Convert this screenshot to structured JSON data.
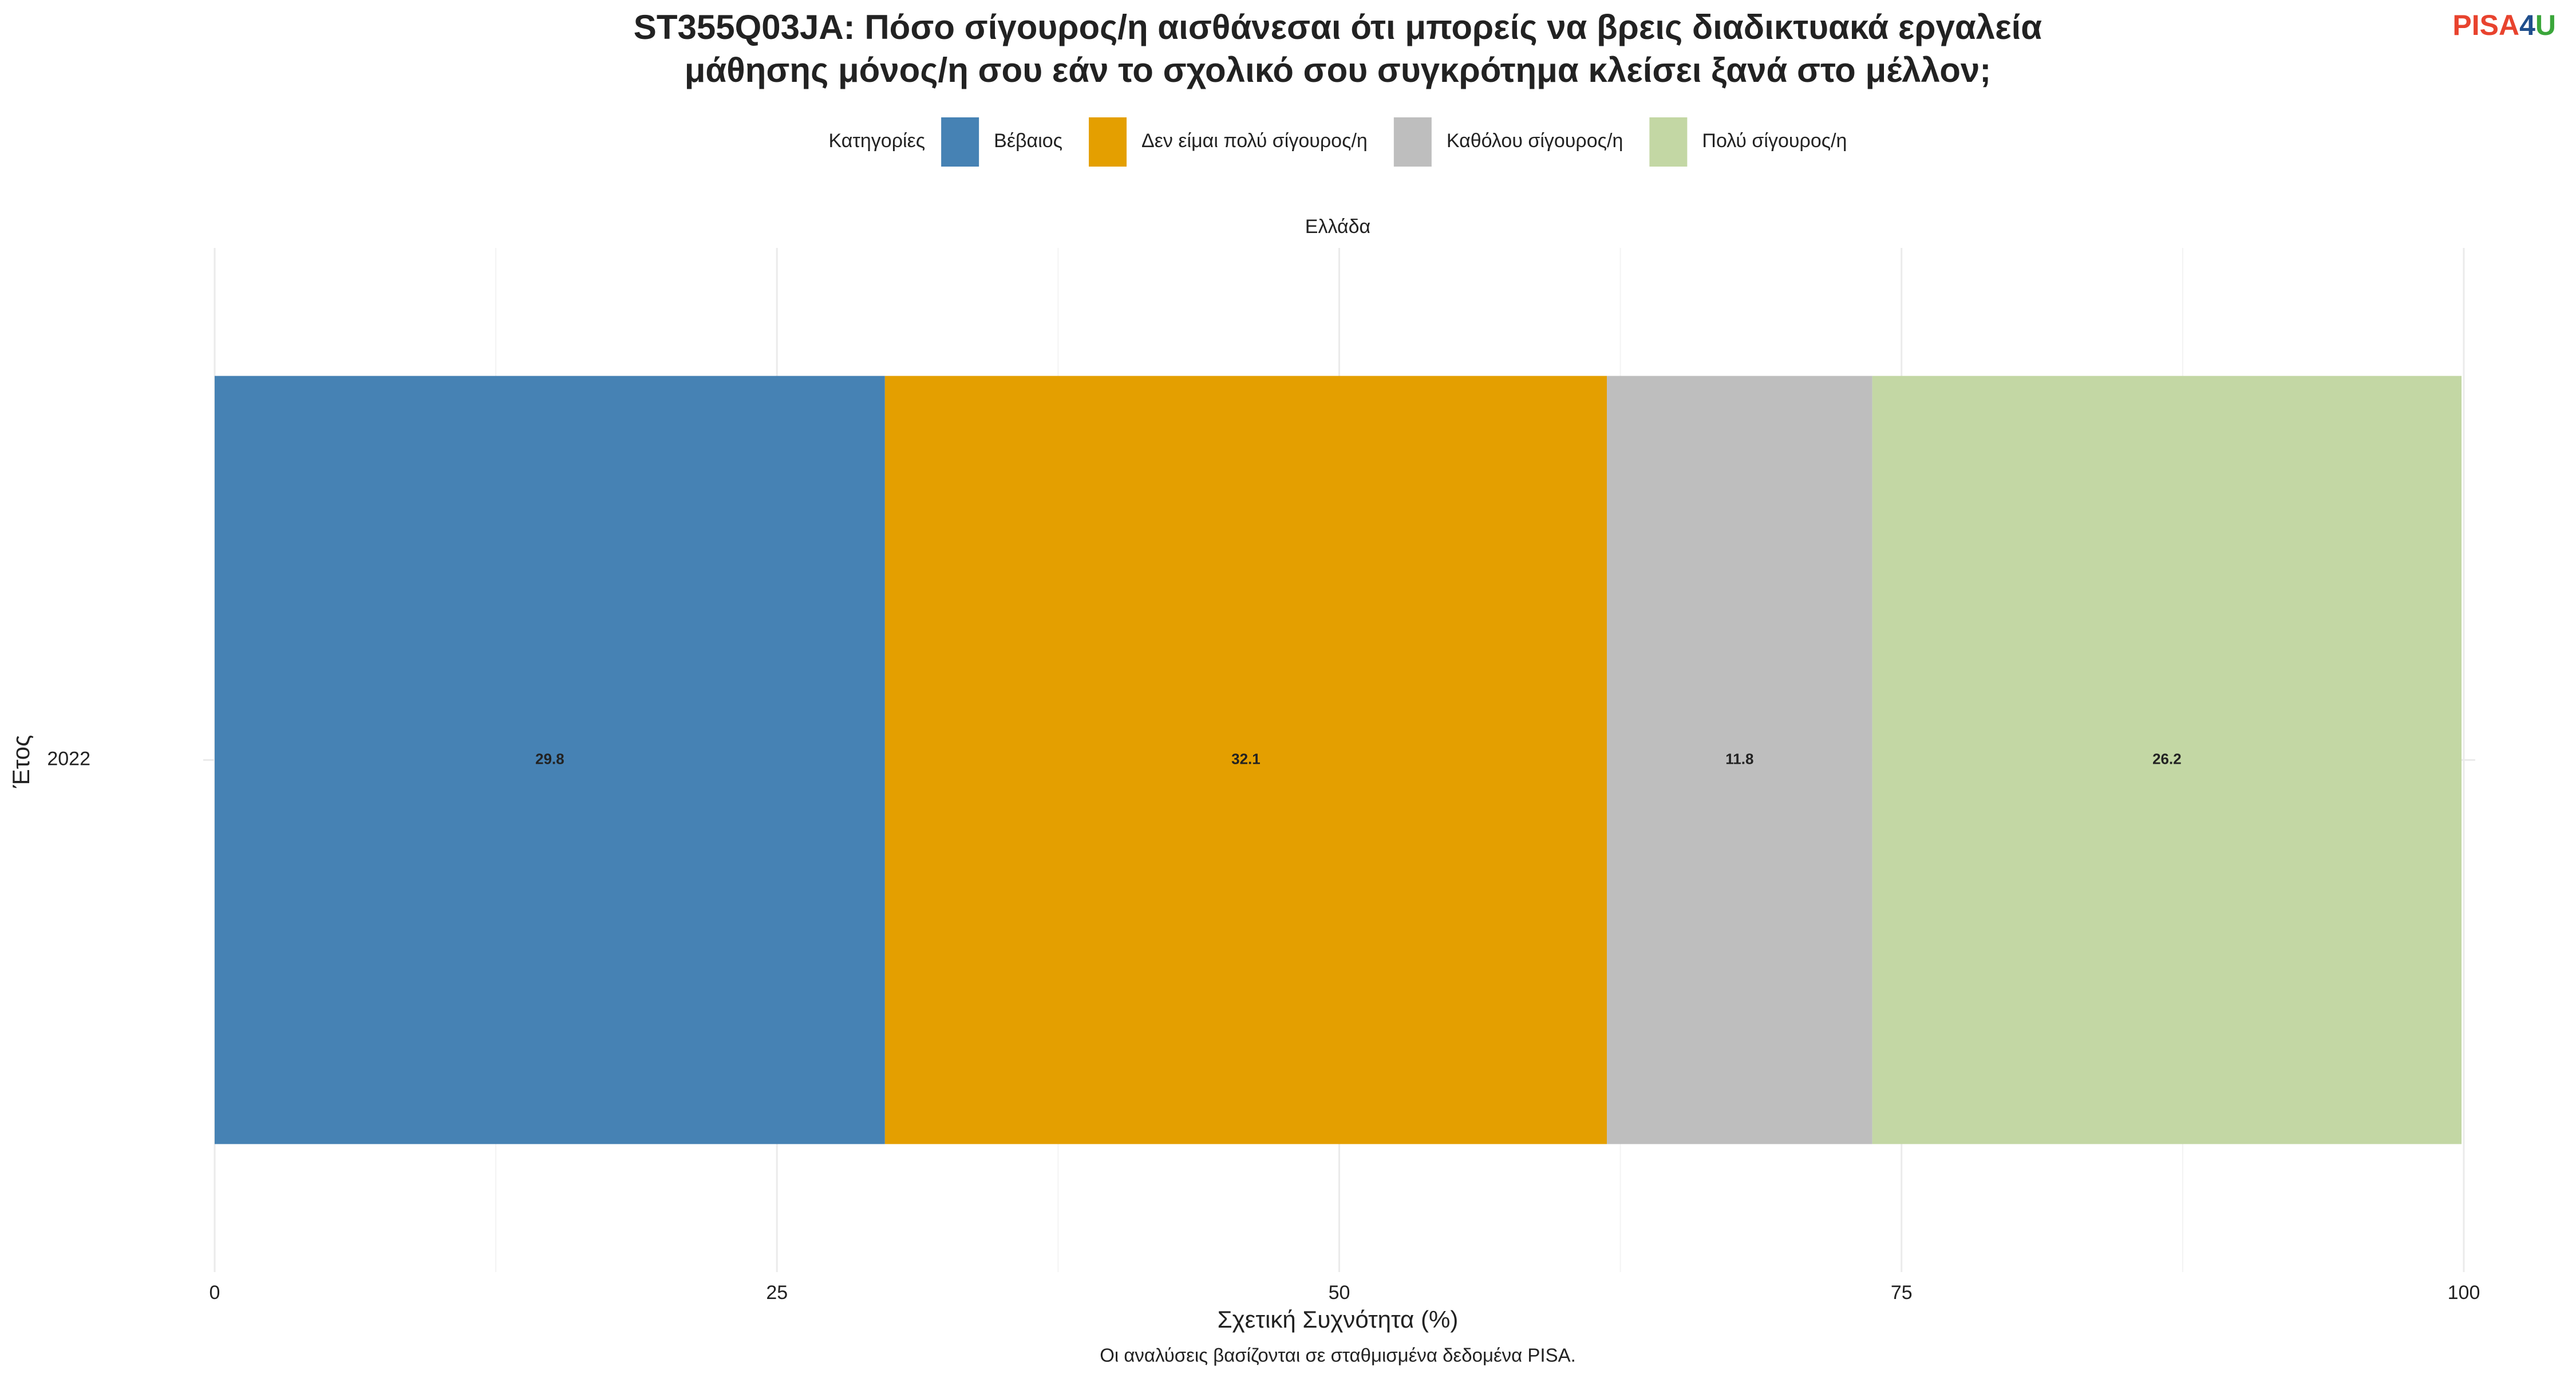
{
  "chart_data": {
    "type": "bar",
    "orientation": "horizontal",
    "stacked": true,
    "title": [
      "ST355Q03JA: Πόσο σίγουρος/η αισθάνεσαι ότι μπορείς να βρεις διαδικτυακά εργαλεία",
      "μάθησης μόνος/η σου εάν το σχολικό σου συγκρότημα κλείσει ξανά στο μέλλον;"
    ],
    "logo": [
      "PISA",
      "4",
      "U"
    ],
    "legend_title": "Κατηγορίες",
    "facet_label": "Ελλάδα",
    "x_label": "Σχετική Συχνότητα (%)",
    "y_label": "Έτος",
    "caption": "Οι αναλύσεις βασίζονται σε σταθμισμένα δεδομένα PISA.",
    "categories": [
      "2022"
    ],
    "series": [
      {
        "name": "Βέβαιος",
        "color": "#4682b4",
        "values": [
          29.8
        ]
      },
      {
        "name": "Δεν είμαι πολύ σίγουρος/η",
        "color": "#e49f00",
        "values": [
          32.1
        ]
      },
      {
        "name": "Καθόλου σίγουρος/η",
        "color": "#bebebe",
        "values": [
          11.8
        ]
      },
      {
        "name": "Πολύ σίγουρος/η",
        "color": "#c3d7a4",
        "values": [
          26.2
        ]
      }
    ],
    "xlim": [
      0,
      100
    ],
    "xticks": [
      0,
      25,
      50,
      75,
      100
    ],
    "grid": true
  }
}
